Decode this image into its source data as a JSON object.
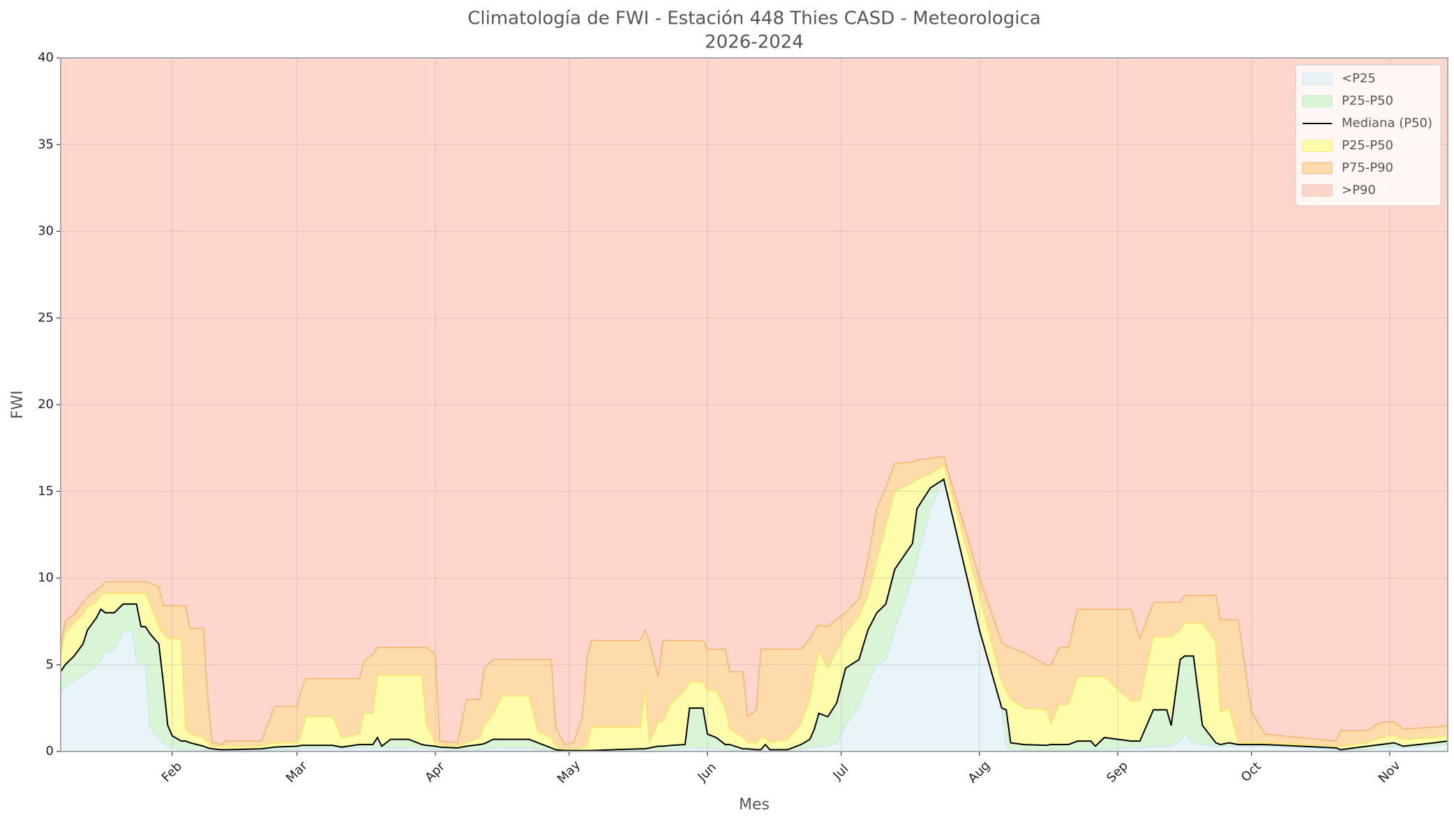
{
  "chart_data": {
    "type": "percentile-bands",
    "title": "Climatología de FWI - Estación 448 Thies CASD - Meteorologica",
    "subtitle": "2026-2024",
    "x_label": "Mes",
    "y_label": "FWI",
    "x": [
      7,
      8,
      10,
      12,
      13,
      15,
      16,
      17,
      19,
      21,
      23,
      24,
      25,
      26,
      27,
      29,
      30,
      31,
      32,
      34,
      35,
      36,
      39,
      40,
      41,
      43,
      44,
      52,
      55,
      60,
      61,
      62,
      68,
      70,
      74,
      75,
      77,
      78,
      79,
      81,
      85,
      88,
      89,
      91,
      92,
      96,
      98,
      101,
      102,
      104,
      106,
      112,
      114,
      117,
      118,
      120,
      122,
      124,
      125,
      126,
      131,
      137,
      138,
      139,
      141,
      142,
      144,
      147,
      148,
      151,
      152,
      154,
      156,
      157,
      160,
      161,
      163,
      164,
      165,
      166,
      170,
      173,
      175,
      176,
      177,
      179,
      181,
      183,
      186,
      188,
      190,
      192,
      194,
      198,
      199,
      202,
      205,
      213,
      218,
      219,
      220,
      223,
      228,
      229,
      231,
      233,
      235,
      238,
      239,
      241,
      247,
      249,
      252,
      255,
      256,
      258,
      259,
      261,
      263,
      266,
      267,
      269,
      271,
      274,
      277,
      285,
      293,
      294,
      300,
      303,
      306,
      308,
      315,
      318
    ],
    "xlim": [
      7,
      318
    ],
    "xticks": [
      {
        "value": 32,
        "label": "Feb"
      },
      {
        "value": 60,
        "label": "Mar"
      },
      {
        "value": 91,
        "label": "Apr"
      },
      {
        "value": 121,
        "label": "May"
      },
      {
        "value": 152,
        "label": "Jun"
      },
      {
        "value": 182,
        "label": "Jul"
      },
      {
        "value": 213,
        "label": "Aug"
      },
      {
        "value": 244,
        "label": "Sep"
      },
      {
        "value": 274,
        "label": "Oct"
      },
      {
        "value": 305,
        "label": "Nov"
      }
    ],
    "ylim": [
      0,
      40
    ],
    "yticks": [
      0,
      5,
      10,
      15,
      20,
      25,
      30,
      35,
      40
    ],
    "grid": true,
    "legend": "upper right",
    "series": [
      {
        "name": "<P25",
        "color": "#e8f4f7",
        "edge": "#cfe6ee",
        "values": [
          3.4,
          3.7,
          4.1,
          4.4,
          4.6,
          4.9,
          5.3,
          5.7,
          5.8,
          6.9,
          7.0,
          5.1,
          5.0,
          5.0,
          1.4,
          0.8,
          0.5,
          0.3,
          0.2,
          0.1,
          0.1,
          0.1,
          0.05,
          0.05,
          0.05,
          0.05,
          0.05,
          0.05,
          0.1,
          0.1,
          0.15,
          0.15,
          0.2,
          0.15,
          0.2,
          0.2,
          0.2,
          0.2,
          0.2,
          0.2,
          0.2,
          0.2,
          0.15,
          0.1,
          0.1,
          0.05,
          0.1,
          0.1,
          0.15,
          0.2,
          0.2,
          0.2,
          0.1,
          0.05,
          0.05,
          0.02,
          0.02,
          0.02,
          0.02,
          0.02,
          0.02,
          0.05,
          0.05,
          0.05,
          0.05,
          0.1,
          0.1,
          0.2,
          0.2,
          0.2,
          0.2,
          0.15,
          0.15,
          0.1,
          0.05,
          0.05,
          0.05,
          0.05,
          0.05,
          0.05,
          0.05,
          0.1,
          0.2,
          0.3,
          0.3,
          0.3,
          0.5,
          1.5,
          2.6,
          4.0,
          5.0,
          5.3,
          7.0,
          10.0,
          11.0,
          14.0,
          15.7,
          7.0,
          2.5,
          0.3,
          0.1,
          0.05,
          0.05,
          0.05,
          0.05,
          0.05,
          0.05,
          0.1,
          0.1,
          0.1,
          0.2,
          0.2,
          0.3,
          0.3,
          0.3,
          0.6,
          1.0,
          0.5,
          0.4,
          0.3,
          0.3,
          0.3,
          0.3,
          0.3,
          0.3,
          0.2,
          0.1,
          0.05,
          0.1,
          0.2,
          0.3,
          0.2,
          0.3,
          0.4
        ]
      },
      {
        "name": "P25-P50",
        "color": "#d9f5d6",
        "edge": "#b7ebb2"
      },
      {
        "name": "Mediana (P50)",
        "color": "#000000",
        "mark": "line",
        "values": [
          4.6,
          5.0,
          5.5,
          6.2,
          7.0,
          7.7,
          8.2,
          8.0,
          8.0,
          8.5,
          8.5,
          8.5,
          7.2,
          7.2,
          6.8,
          6.2,
          4.0,
          1.5,
          0.9,
          0.6,
          0.6,
          0.5,
          0.3,
          0.2,
          0.15,
          0.1,
          0.1,
          0.15,
          0.25,
          0.3,
          0.35,
          0.35,
          0.35,
          0.25,
          0.4,
          0.4,
          0.4,
          0.8,
          0.3,
          0.7,
          0.7,
          0.4,
          0.35,
          0.3,
          0.25,
          0.2,
          0.3,
          0.4,
          0.45,
          0.7,
          0.7,
          0.7,
          0.5,
          0.2,
          0.1,
          0.05,
          0.05,
          0.05,
          0.05,
          0.05,
          0.1,
          0.15,
          0.15,
          0.2,
          0.3,
          0.3,
          0.35,
          0.4,
          2.5,
          2.5,
          1.0,
          0.8,
          0.4,
          0.4,
          0.15,
          0.15,
          0.1,
          0.1,
          0.4,
          0.1,
          0.1,
          0.4,
          0.7,
          1.3,
          2.2,
          2.0,
          2.8,
          4.8,
          5.3,
          7.0,
          8.0,
          8.5,
          10.5,
          12.0,
          14.0,
          15.2,
          15.7,
          7.0,
          2.5,
          2.4,
          0.5,
          0.4,
          0.35,
          0.4,
          0.4,
          0.4,
          0.6,
          0.6,
          0.3,
          0.8,
          0.6,
          0.6,
          2.4,
          2.4,
          1.5,
          5.3,
          5.5,
          5.5,
          1.5,
          0.5,
          0.4,
          0.5,
          0.4,
          0.4,
          0.4,
          0.3,
          0.2,
          0.1,
          0.3,
          0.4,
          0.5,
          0.3,
          0.5,
          0.6
        ]
      },
      {
        "name": "P25-P50",
        "color": "#fdfcaa",
        "edge": "#f5e66a",
        "values": [
          5.5,
          6.8,
          7.4,
          7.9,
          8.3,
          8.6,
          9.0,
          9.1,
          9.1,
          9.1,
          9.1,
          9.1,
          9.1,
          9.1,
          8.5,
          7.2,
          6.8,
          6.5,
          6.5,
          6.5,
          1.3,
          1.0,
          0.8,
          0.5,
          0.3,
          0.3,
          0.3,
          0.3,
          0.5,
          0.5,
          1.0,
          2.0,
          2.0,
          0.8,
          1.0,
          2.2,
          2.2,
          4.4,
          4.4,
          4.4,
          4.4,
          4.4,
          1.5,
          0.5,
          0.4,
          0.3,
          0.5,
          0.8,
          1.5,
          2.2,
          3.2,
          3.2,
          1.1,
          0.8,
          0.3,
          0.1,
          0.1,
          0.2,
          0.3,
          1.4,
          1.4,
          1.4,
          3.6,
          0.5,
          1.7,
          1.7,
          2.8,
          3.5,
          4.0,
          4.0,
          3.5,
          3.5,
          2.5,
          1.3,
          0.8,
          0.5,
          0.5,
          0.8,
          0.8,
          0.5,
          0.7,
          1.6,
          3.0,
          4.5,
          5.8,
          4.8,
          5.8,
          6.8,
          7.8,
          9.0,
          11.0,
          13.0,
          15.0,
          15.5,
          15.7,
          16.0,
          16.5,
          9.0,
          4.0,
          3.5,
          3.0,
          2.5,
          2.4,
          1.6,
          2.7,
          2.7,
          4.3,
          4.3,
          4.3,
          4.3,
          2.9,
          2.9,
          6.6,
          6.6,
          6.6,
          7.0,
          7.4,
          7.4,
          7.4,
          6.3,
          2.3,
          2.5,
          0.5,
          0.5,
          0.5,
          0.4,
          0.3,
          0.3,
          0.5,
          0.8,
          0.9,
          0.7,
          0.8,
          0.9
        ]
      },
      {
        "name": "P75-P90",
        "color": "#fedbab",
        "edge": "#f5b46e",
        "values": [
          6.0,
          7.5,
          7.9,
          8.6,
          8.9,
          9.3,
          9.5,
          9.8,
          9.8,
          9.8,
          9.8,
          9.8,
          9.8,
          9.8,
          9.7,
          9.5,
          8.4,
          8.4,
          8.4,
          8.4,
          8.4,
          7.1,
          7.1,
          3.0,
          0.5,
          0.4,
          0.6,
          0.6,
          2.6,
          2.6,
          3.6,
          4.2,
          4.2,
          4.2,
          4.2,
          5.2,
          5.6,
          6.0,
          6.0,
          6.0,
          6.0,
          6.0,
          6.0,
          5.6,
          0.6,
          0.5,
          3.0,
          3.0,
          4.8,
          5.3,
          5.3,
          5.3,
          5.3,
          5.3,
          1.4,
          0.4,
          0.5,
          2.0,
          5.3,
          6.4,
          6.4,
          6.4,
          7.0,
          6.3,
          4.3,
          6.4,
          6.4,
          6.4,
          6.4,
          6.4,
          5.9,
          5.9,
          5.9,
          4.6,
          4.6,
          2.0,
          2.4,
          5.9,
          5.9,
          5.9,
          5.9,
          5.9,
          6.5,
          7.0,
          7.3,
          7.2,
          7.6,
          8.0,
          8.8,
          11.0,
          14.0,
          15.2,
          16.6,
          16.7,
          16.8,
          16.9,
          17.0,
          10.0,
          6.3,
          6.1,
          6.0,
          5.7,
          5.0,
          5.0,
          6.0,
          6.0,
          8.2,
          8.2,
          8.2,
          8.2,
          8.2,
          6.5,
          8.6,
          8.6,
          8.6,
          8.6,
          9.0,
          9.0,
          9.0,
          9.0,
          7.6,
          7.6,
          7.6,
          2.3,
          1.0,
          0.8,
          0.6,
          1.2,
          1.2,
          1.7,
          1.7,
          1.3,
          1.4,
          1.5
        ]
      },
      {
        "name": ">P90",
        "color": "#fed6cb",
        "edge": "#f4b8a6"
      }
    ]
  }
}
